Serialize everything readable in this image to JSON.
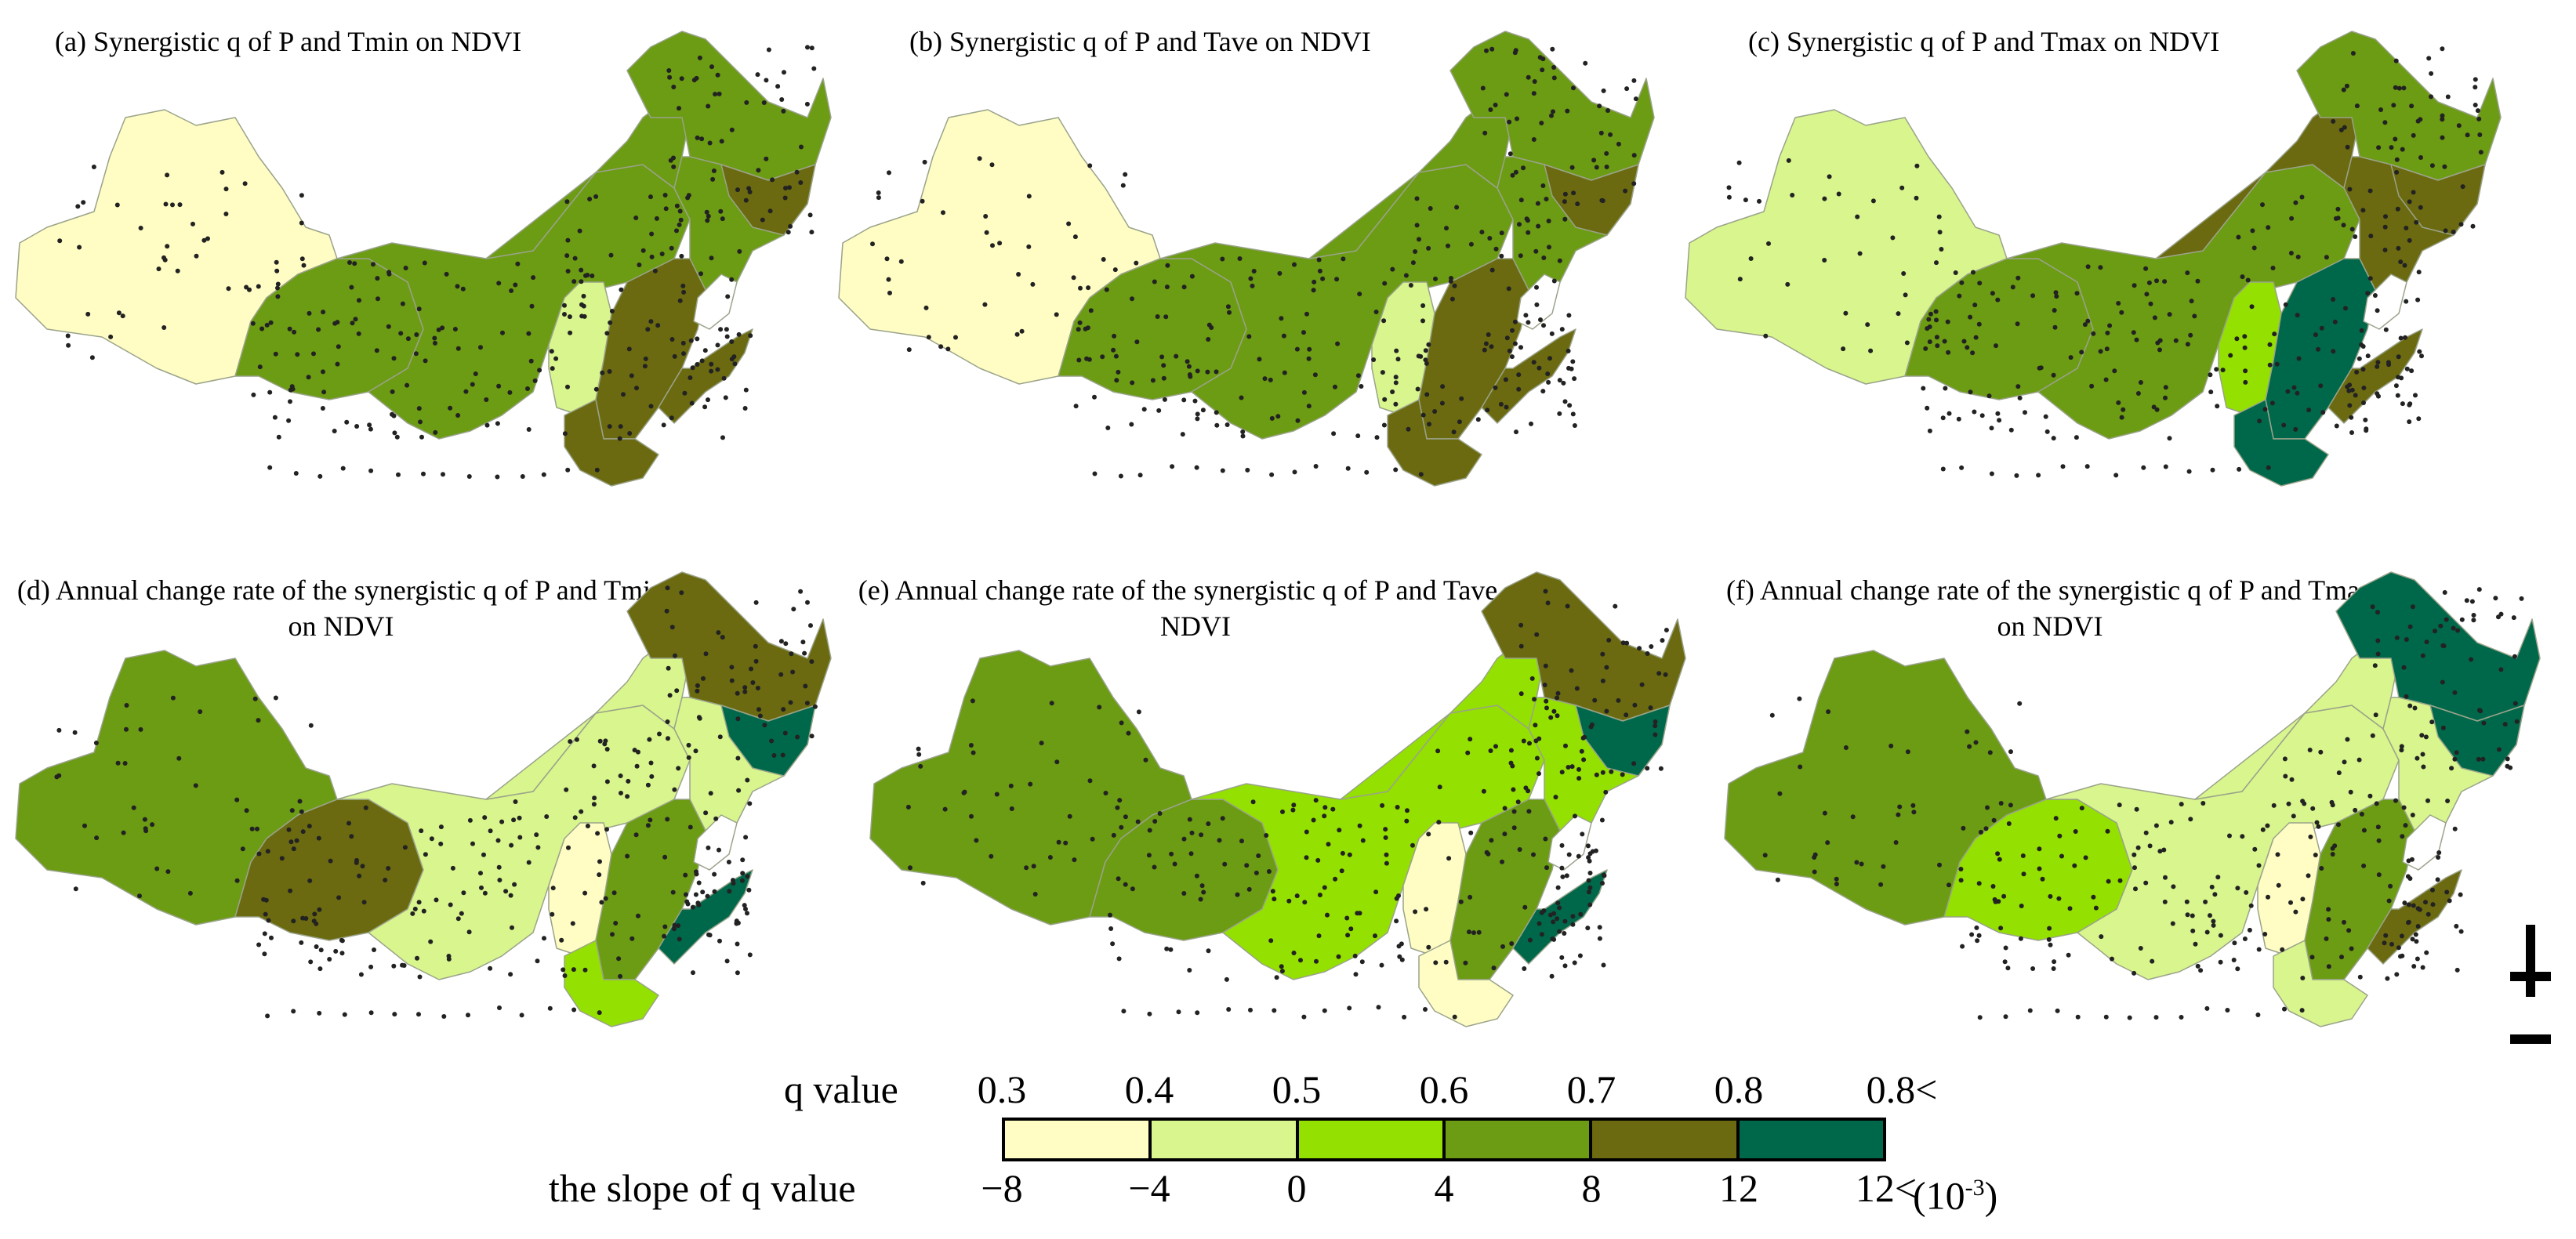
{
  "panels": [
    {
      "id": "a",
      "title": "(a) Synergistic q of P and Tmin on NDVI",
      "regions": {
        "west": "#fffdc4",
        "central": "#6c9b14",
        "northeast": "#6c9b14",
        "neUpper": "#6c9b14",
        "neLower": "#6c6a10",
        "north": "#6c9b14",
        "westMid": "#6c9b14",
        "strip": "#d9f58e",
        "southeast": "#6c6a10",
        "peninsula": "#6c6a10",
        "southEnd": "#6c6a10"
      }
    },
    {
      "id": "b",
      "title": "(b) Synergistic q of P and Tave on NDVI",
      "regions": {
        "west": "#fffdc4",
        "central": "#6c9b14",
        "northeast": "#6c9b14",
        "neUpper": "#6c9b14",
        "neLower": "#6c6a10",
        "north": "#6c9b14",
        "westMid": "#6c9b14",
        "strip": "#d9f58e",
        "southeast": "#6c6a10",
        "peninsula": "#6c6a10",
        "southEnd": "#6c6a10"
      }
    },
    {
      "id": "c",
      "title": "(c) Synergistic q of P and Tmax on NDVI",
      "regions": {
        "west": "#d9f58e",
        "central": "#6c9b14",
        "northeast": "#6c6a10",
        "neUpper": "#6c9b14",
        "neLower": "#6c6a10",
        "north": "#6c6a10",
        "westMid": "#6c9b14",
        "strip": "#94e000",
        "southeast": "#00684a",
        "peninsula": "#6c6a10",
        "southEnd": "#00684a"
      }
    },
    {
      "id": "d",
      "title": "(d) Annual change rate of the synergistic q of P and Tmin on NDVI",
      "regions": {
        "west": "#6c9b14",
        "central": "#d9f58e",
        "northeast": "#d9f58e",
        "neUpper": "#6c6a10",
        "neLower": "#00684a",
        "north": "#d9f58e",
        "westMid": "#6c6a10",
        "strip": "#fffdc4",
        "southeast": "#6c9b14",
        "peninsula": "#00684a",
        "southEnd": "#94e000"
      }
    },
    {
      "id": "e",
      "title": "(e) Annual change rate of the synergistic q of P and Tave on NDVI",
      "regions": {
        "west": "#6c9b14",
        "central": "#94e000",
        "northeast": "#94e000",
        "neUpper": "#6c6a10",
        "neLower": "#00684a",
        "north": "#94e000",
        "westMid": "#6c9b14",
        "strip": "#fffdc4",
        "southeast": "#6c9b14",
        "peninsula": "#00684a",
        "southEnd": "#fffdc4"
      }
    },
    {
      "id": "f",
      "title": "(f) Annual change rate of the synergistic q of P and Tmax on NDVI",
      "regions": {
        "west": "#6c9b14",
        "central": "#d9f58e",
        "northeast": "#d9f58e",
        "neUpper": "#00684a",
        "neLower": "#00684a",
        "north": "#d9f58e",
        "westMid": "#94e000",
        "strip": "#fffdc4",
        "southeast": "#6c9b14",
        "peninsula": "#6c6a10",
        "southEnd": "#d9f58e"
      }
    }
  ],
  "legend": {
    "q_label": "q value",
    "slope_label": "the slope of q value",
    "q_ticks": [
      "0.3",
      "0.4",
      "0.5",
      "0.6",
      "0.7",
      "0.8",
      "0.8<"
    ],
    "slope_ticks": [
      "−8",
      "−4",
      "0",
      "4",
      "8",
      "12",
      "12<"
    ],
    "slope_unit": "(10",
    "slope_unit_exp": "-3",
    "slope_unit_close": ")",
    "colors": [
      "#fffdc4",
      "#d9f58e",
      "#94e000",
      "#6c9b14",
      "#6c6a10",
      "#00684a"
    ]
  }
}
